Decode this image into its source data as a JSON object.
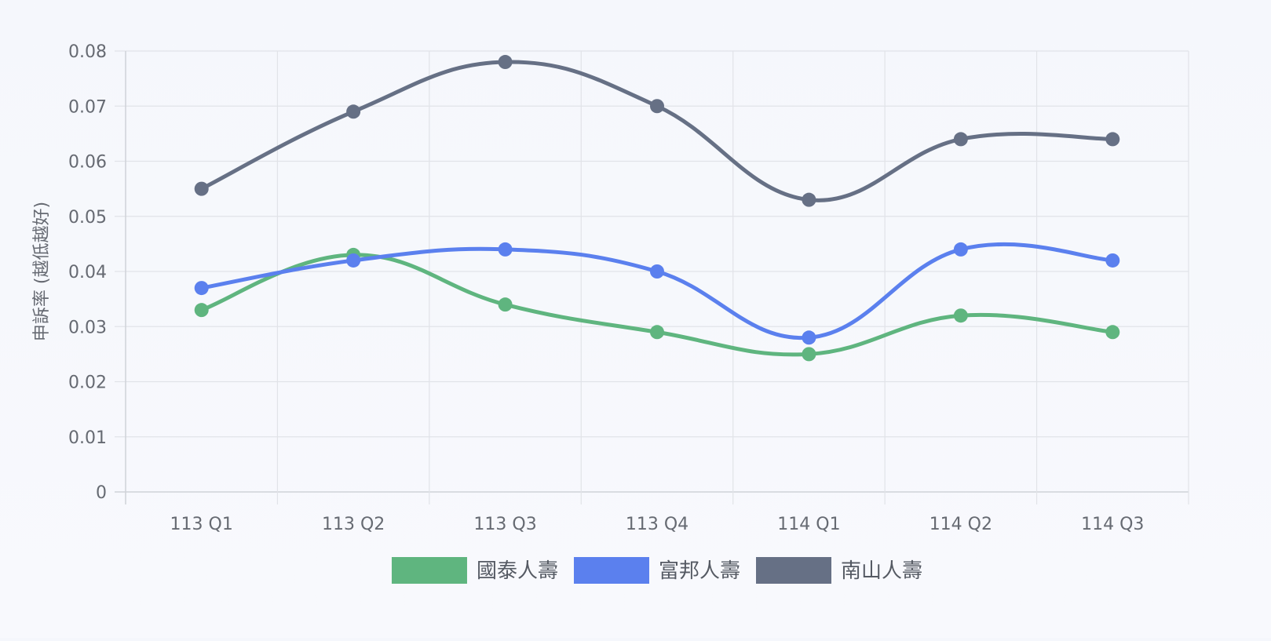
{
  "chart_data": {
    "type": "line",
    "categories": [
      "113 Q1",
      "113 Q2",
      "113 Q3",
      "113 Q4",
      "114 Q1",
      "114 Q2",
      "114 Q3"
    ],
    "ylabel": "申訴率 (越低越好)",
    "ylim": [
      0,
      0.08
    ],
    "yticks": [
      "0",
      "0.01",
      "0.02",
      "0.03",
      "0.04",
      "0.05",
      "0.06",
      "0.07",
      "0.08"
    ],
    "grid": true,
    "legend": "bottom",
    "series": [
      {
        "name": "國泰人壽",
        "color": "#5fb57f",
        "values": [
          0.033,
          0.043,
          0.034,
          0.029,
          0.025,
          0.032,
          0.029
        ]
      },
      {
        "name": "富邦人壽",
        "color": "#5b80ee",
        "values": [
          0.037,
          0.042,
          0.044,
          0.04,
          0.028,
          0.044,
          0.042
        ]
      },
      {
        "name": "南山人壽",
        "color": "#667085",
        "values": [
          0.055,
          0.069,
          0.078,
          0.07,
          0.053,
          0.064,
          0.064
        ]
      }
    ]
  }
}
